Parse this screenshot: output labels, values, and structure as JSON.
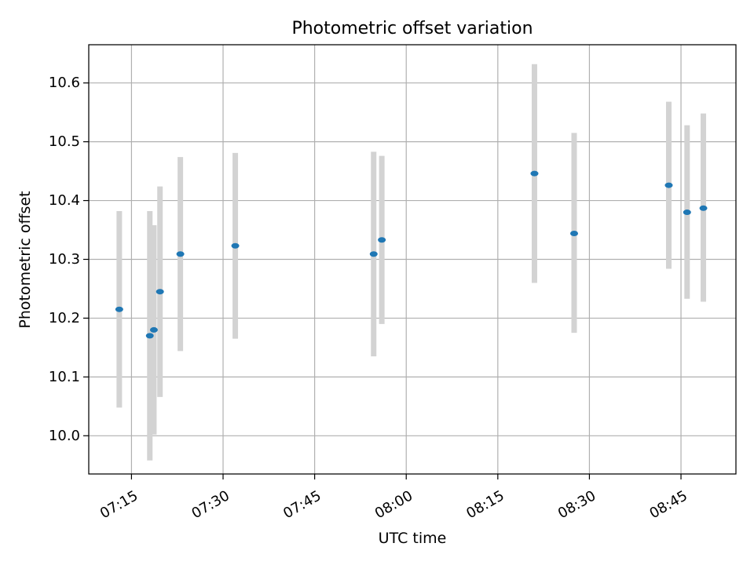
{
  "chart_data": {
    "type": "scatter",
    "title": "Photometric offset variation",
    "xlabel": "UTC time",
    "ylabel": "Photometric offset",
    "xlim": [
      "07:08",
      "08:54"
    ],
    "ylim": [
      9.935,
      10.665
    ],
    "x_ticks": [
      "07:15",
      "07:30",
      "07:45",
      "08:00",
      "08:15",
      "08:30",
      "08:45"
    ],
    "y_ticks": [
      10.0,
      10.1,
      10.2,
      10.3,
      10.4,
      10.5,
      10.6
    ],
    "y_tick_labels": [
      "10.0",
      "10.1",
      "10.2",
      "10.3",
      "10.4",
      "10.5",
      "10.6"
    ],
    "grid": true,
    "points": [
      {
        "x": "07:13",
        "y": 10.215,
        "yerr_low": 10.048,
        "yerr_high": 10.382
      },
      {
        "x": "07:18",
        "y": 10.17,
        "yerr_low": 9.958,
        "yerr_high": 10.382
      },
      {
        "x": "07:18:40",
        "y": 10.18,
        "yerr_low": 10.002,
        "yerr_high": 10.358
      },
      {
        "x": "07:19:40",
        "y": 10.245,
        "yerr_low": 10.066,
        "yerr_high": 10.424
      },
      {
        "x": "07:23",
        "y": 10.309,
        "yerr_low": 10.144,
        "yerr_high": 10.474
      },
      {
        "x": "07:32",
        "y": 10.323,
        "yerr_low": 10.165,
        "yerr_high": 10.481
      },
      {
        "x": "07:54:40",
        "y": 10.309,
        "yerr_low": 10.135,
        "yerr_high": 10.483
      },
      {
        "x": "07:56",
        "y": 10.333,
        "yerr_low": 10.19,
        "yerr_high": 10.476
      },
      {
        "x": "08:21",
        "y": 10.446,
        "yerr_low": 10.26,
        "yerr_high": 10.632
      },
      {
        "x": "08:27:30",
        "y": 10.344,
        "yerr_low": 10.175,
        "yerr_high": 10.515
      },
      {
        "x": "08:43",
        "y": 10.426,
        "yerr_low": 10.284,
        "yerr_high": 10.568
      },
      {
        "x": "08:46",
        "y": 10.38,
        "yerr_low": 10.233,
        "yerr_high": 10.528
      },
      {
        "x": "08:48:40",
        "y": 10.387,
        "yerr_low": 10.228,
        "yerr_high": 10.548
      }
    ],
    "colors": {
      "marker": "#1f77b4",
      "errorbar": "#d3d3d3",
      "grid": "#b0b0b0",
      "axes": "#000000"
    }
  }
}
